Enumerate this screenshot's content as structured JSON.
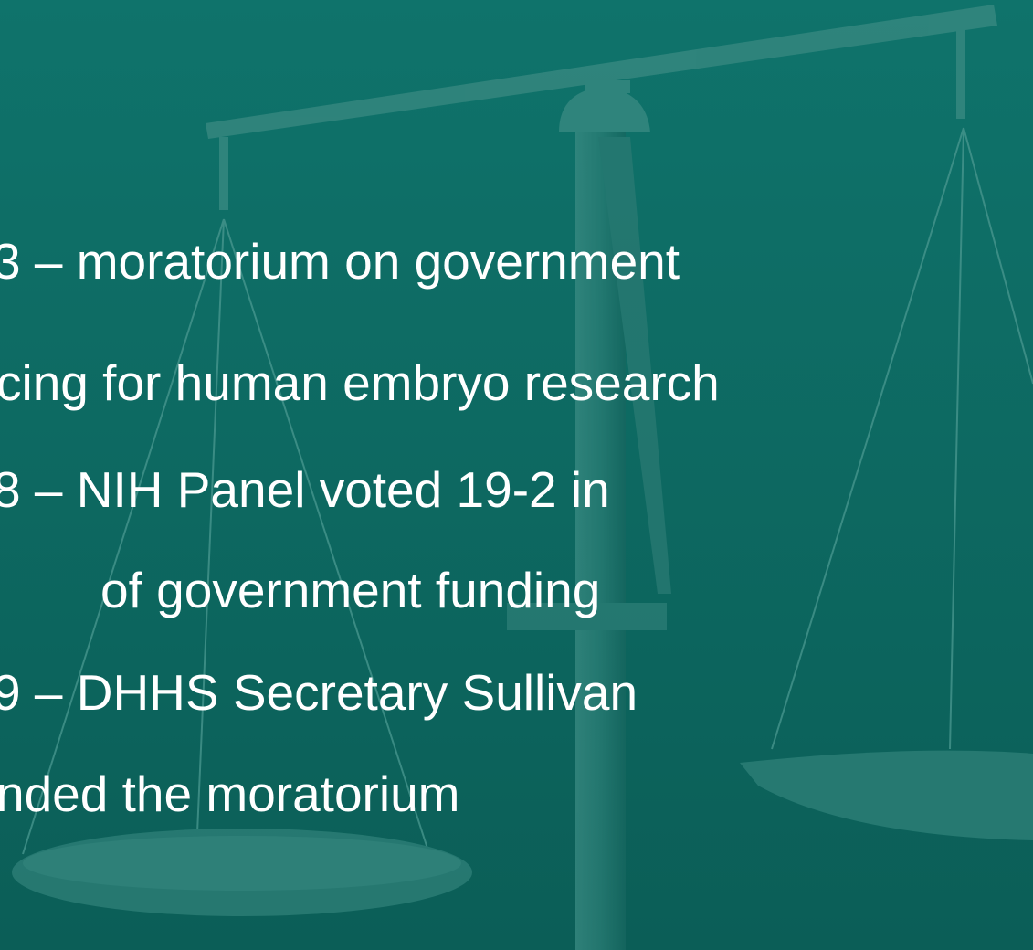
{
  "slide": {
    "lines": [
      "3 – moratorium on government",
      "cing for human embryo research",
      "8 – NIH Panel voted 19-2 in",
      "of government funding",
      "9 – DHHS Secretary Sullivan",
      "nded the moratorium"
    ]
  }
}
